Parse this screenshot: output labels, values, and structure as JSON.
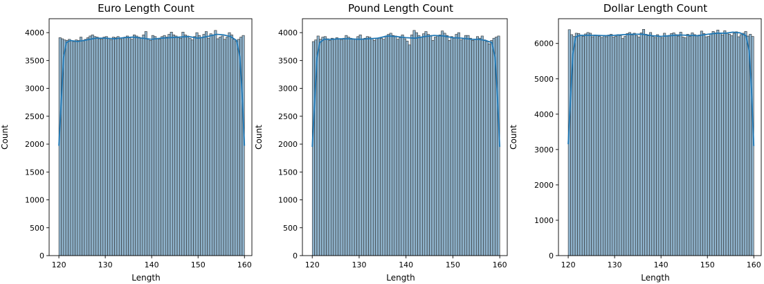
{
  "colors": {
    "bar_fill": "#8fb3cc",
    "bar_edge": "#2b2b2b",
    "kde": "#1f77b4",
    "axis": "#000000"
  },
  "chart_data": [
    {
      "type": "bar",
      "title": "Euro Length Count",
      "xlabel": "Length",
      "ylabel": "Count",
      "xlim": [
        117.9,
        161.6
      ],
      "ylim": [
        0,
        4250
      ],
      "xticks": [
        120,
        130,
        140,
        150,
        160
      ],
      "yticks": [
        0,
        500,
        1000,
        1500,
        2000,
        2500,
        3000,
        3500,
        4000
      ],
      "bin_start": 120,
      "bin_width": 0.5,
      "values": [
        3910,
        3890,
        3870,
        3860,
        3880,
        3850,
        3840,
        3870,
        3860,
        3920,
        3850,
        3880,
        3910,
        3940,
        3960,
        3930,
        3920,
        3890,
        3880,
        3920,
        3930,
        3900,
        3870,
        3920,
        3910,
        3930,
        3880,
        3900,
        3920,
        3940,
        3910,
        3880,
        3960,
        3940,
        3920,
        3900,
        3960,
        4020,
        3880,
        3860,
        3950,
        3930,
        3890,
        3880,
        3930,
        3950,
        3920,
        3970,
        4010,
        3960,
        3940,
        3910,
        3900,
        4010,
        3960,
        3940,
        3900,
        3870,
        3930,
        4000,
        3950,
        3910,
        3970,
        4020,
        3900,
        3980,
        3960,
        4040,
        3890,
        3920,
        3940,
        3880,
        3920,
        4000,
        3960,
        3880,
        3850,
        3880,
        3920,
        3950
      ],
      "kde": [
        [
          120,
          1970
        ],
        [
          120.6,
          2900
        ],
        [
          121,
          3550
        ],
        [
          121.6,
          3820
        ],
        [
          122.5,
          3860
        ],
        [
          124,
          3840
        ],
        [
          126,
          3870
        ],
        [
          128,
          3900
        ],
        [
          130,
          3900
        ],
        [
          132,
          3890
        ],
        [
          134,
          3910
        ],
        [
          136,
          3920
        ],
        [
          138,
          3900
        ],
        [
          140,
          3880
        ],
        [
          142,
          3900
        ],
        [
          144,
          3910
        ],
        [
          146,
          3920
        ],
        [
          148,
          3930
        ],
        [
          150,
          3900
        ],
        [
          152,
          3930
        ],
        [
          154,
          3970
        ],
        [
          155.5,
          3960
        ],
        [
          157,
          3930
        ],
        [
          158.3,
          3860
        ],
        [
          159,
          3570
        ],
        [
          159.5,
          2900
        ],
        [
          160,
          1970
        ]
      ]
    },
    {
      "type": "bar",
      "title": "Pound Length Count",
      "xlabel": "Length",
      "ylabel": "Count",
      "xlim": [
        117.9,
        161.6
      ],
      "ylim": [
        0,
        4250
      ],
      "xticks": [
        120,
        130,
        140,
        150,
        160
      ],
      "yticks": [
        0,
        500,
        1000,
        1500,
        2000,
        2500,
        3000,
        3500,
        4000
      ],
      "bin_start": 120,
      "bin_width": 0.5,
      "values": [
        3840,
        3870,
        3940,
        3880,
        3920,
        3930,
        3890,
        3860,
        3900,
        3880,
        3910,
        3890,
        3870,
        3900,
        3950,
        3920,
        3900,
        3880,
        3880,
        3930,
        3960,
        3880,
        3900,
        3930,
        3920,
        3890,
        3860,
        3900,
        3910,
        3900,
        3880,
        3940,
        3970,
        3990,
        3950,
        3940,
        3880,
        3910,
        3960,
        3890,
        3850,
        3780,
        3960,
        4040,
        4000,
        3950,
        3920,
        3980,
        4020,
        3970,
        3950,
        3860,
        3920,
        3940,
        3960,
        4030,
        3990,
        3950,
        3860,
        3930,
        3900,
        3970,
        4000,
        3870,
        3890,
        3950,
        3950,
        3900,
        3860,
        3880,
        3930,
        3900,
        3940,
        3870,
        3840,
        3800,
        3860,
        3900,
        3920,
        3940
      ],
      "kde": [
        [
          120,
          1950
        ],
        [
          120.6,
          2900
        ],
        [
          121,
          3550
        ],
        [
          121.6,
          3820
        ],
        [
          122.5,
          3880
        ],
        [
          124,
          3880
        ],
        [
          126,
          3890
        ],
        [
          128,
          3890
        ],
        [
          130,
          3880
        ],
        [
          132,
          3890
        ],
        [
          134,
          3900
        ],
        [
          136,
          3940
        ],
        [
          138,
          3930
        ],
        [
          140,
          3910
        ],
        [
          142,
          3900
        ],
        [
          144,
          3930
        ],
        [
          146,
          3950
        ],
        [
          148,
          3940
        ],
        [
          150,
          3910
        ],
        [
          152,
          3900
        ],
        [
          154,
          3880
        ],
        [
          155.5,
          3880
        ],
        [
          157,
          3860
        ],
        [
          158.3,
          3820
        ],
        [
          159,
          3560
        ],
        [
          159.5,
          2850
        ],
        [
          160,
          1950
        ]
      ]
    },
    {
      "type": "bar",
      "title": "Dollar Length Count",
      "xlabel": "Length",
      "ylabel": "Count",
      "xlim": [
        117.9,
        161.6
      ],
      "ylim": [
        0,
        6700
      ],
      "xticks": [
        120,
        130,
        140,
        150,
        160
      ],
      "yticks": [
        0,
        1000,
        2000,
        3000,
        4000,
        5000,
        6000
      ],
      "bin_start": 120,
      "bin_width": 0.5,
      "values": [
        6390,
        6250,
        6200,
        6290,
        6280,
        6230,
        6200,
        6270,
        6310,
        6290,
        6190,
        6240,
        6220,
        6200,
        6170,
        6230,
        6190,
        6240,
        6260,
        6180,
        6200,
        6250,
        6220,
        6140,
        6200,
        6280,
        6310,
        6240,
        6290,
        6220,
        6180,
        6300,
        6400,
        6260,
        6220,
        6310,
        6200,
        6170,
        6250,
        6200,
        6160,
        6290,
        6210,
        6230,
        6280,
        6300,
        6250,
        6210,
        6320,
        6180,
        6160,
        6260,
        6200,
        6300,
        6250,
        6220,
        6240,
        6350,
        6280,
        6190,
        6200,
        6270,
        6340,
        6300,
        6380,
        6290,
        6240,
        6360,
        6300,
        6260,
        6220,
        6290,
        6330,
        6190,
        6250,
        6290,
        6340,
        6210,
        6260,
        6200
      ],
      "kde": [
        [
          120,
          3150
        ],
        [
          120.6,
          4700
        ],
        [
          121,
          5700
        ],
        [
          121.6,
          6180
        ],
        [
          122.5,
          6230
        ],
        [
          124,
          6230
        ],
        [
          126,
          6230
        ],
        [
          128,
          6220
        ],
        [
          130,
          6230
        ],
        [
          132,
          6250
        ],
        [
          134,
          6260
        ],
        [
          136,
          6260
        ],
        [
          138,
          6220
        ],
        [
          140,
          6200
        ],
        [
          142,
          6220
        ],
        [
          144,
          6240
        ],
        [
          146,
          6230
        ],
        [
          148,
          6220
        ],
        [
          150,
          6260
        ],
        [
          152,
          6290
        ],
        [
          154,
          6290
        ],
        [
          155.5,
          6320
        ],
        [
          157,
          6300
        ],
        [
          158.3,
          6220
        ],
        [
          159,
          5800
        ],
        [
          159.5,
          4700
        ],
        [
          160,
          3100
        ]
      ]
    }
  ]
}
